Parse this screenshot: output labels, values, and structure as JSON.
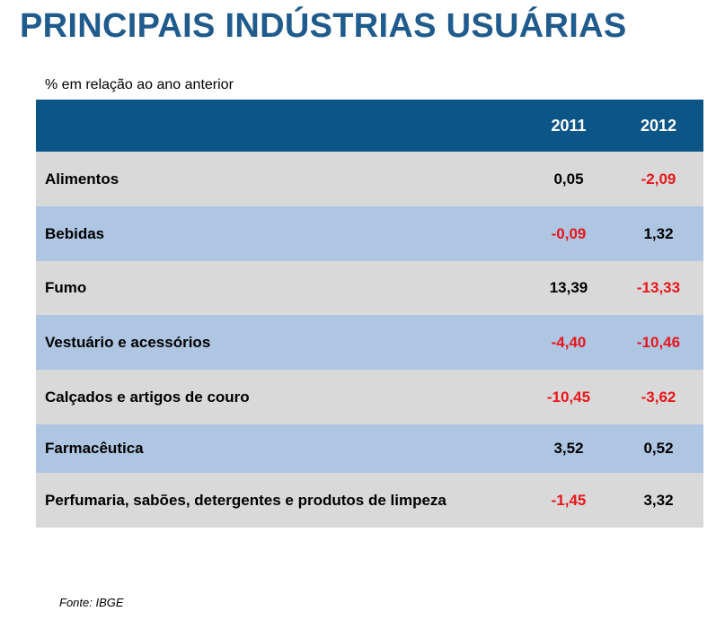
{
  "title": "PRINCIPAIS INDÚSTRIAS USUÁRIAS",
  "subtitle": "% em relação ao ano anterior",
  "header": {
    "col1": "2011",
    "col2": "2012"
  },
  "rows": [
    {
      "name": "Alimentos",
      "v2011": "0,05",
      "v2012": "-2,09"
    },
    {
      "name": "Bebidas",
      "v2011": "-0,09",
      "v2012": "1,32"
    },
    {
      "name": "Fumo",
      "v2011": "13,39",
      "v2012": "-13,33"
    },
    {
      "name": "Vestuário  e acessórios",
      "v2011": "-4,40",
      "v2012": "-10,46"
    },
    {
      "name": "Calçados  e artigos  de couro",
      "v2011": "-10,45",
      "v2012": "-3,62"
    },
    {
      "name": "Farmacêutica",
      "v2011": "3,52",
      "v2012": "0,52"
    },
    {
      "name": "Perfumaria,  sabões,  detergentes e produtos  de limpeza",
      "v2011": "-1,45",
      "v2012": "3,32"
    }
  ],
  "colors": {
    "negative": "#e8161b",
    "header_bg": "#0b5686",
    "row_gray": "#d9d9d9",
    "row_blue": "#aec6e2",
    "title": "#1f5b8c"
  },
  "source": "Fonte: IBGE"
}
